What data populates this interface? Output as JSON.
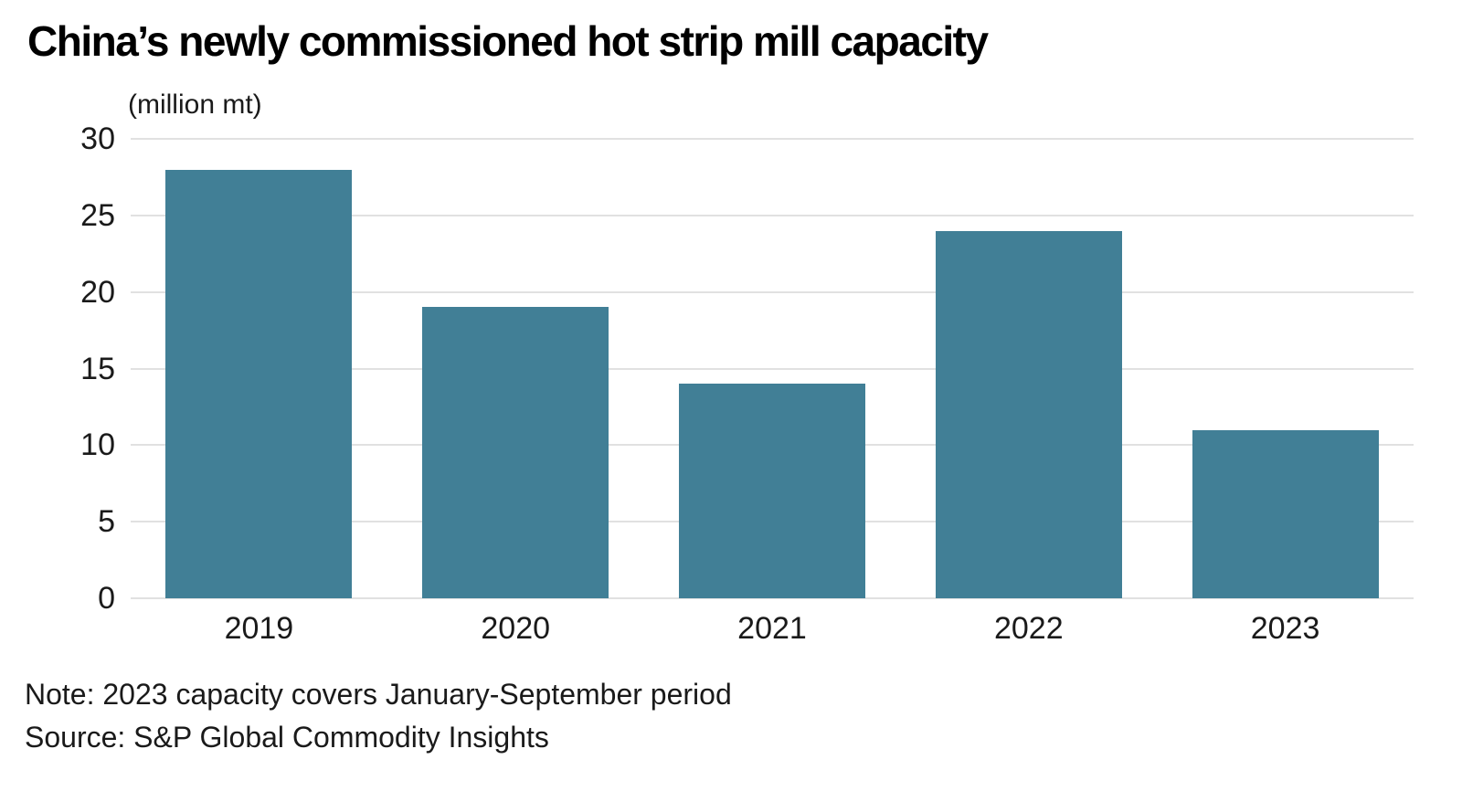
{
  "chart_data": {
    "type": "bar",
    "title": "China’s newly commissioned hot strip mill capacity",
    "unit_label": "(million mt)",
    "categories": [
      "2019",
      "2020",
      "2021",
      "2022",
      "2023"
    ],
    "values": [
      28,
      19,
      14,
      24,
      11
    ],
    "ylim": [
      0,
      30
    ],
    "yticks": [
      30,
      25,
      20,
      15,
      10,
      5,
      0
    ],
    "grid": true,
    "legend": "none",
    "bar_color": "#417f96",
    "gridline_color": "#e1e1e1",
    "note": "Note: 2023 capacity covers January-September period",
    "source": "Source: S&P Global Commodity Insights"
  }
}
